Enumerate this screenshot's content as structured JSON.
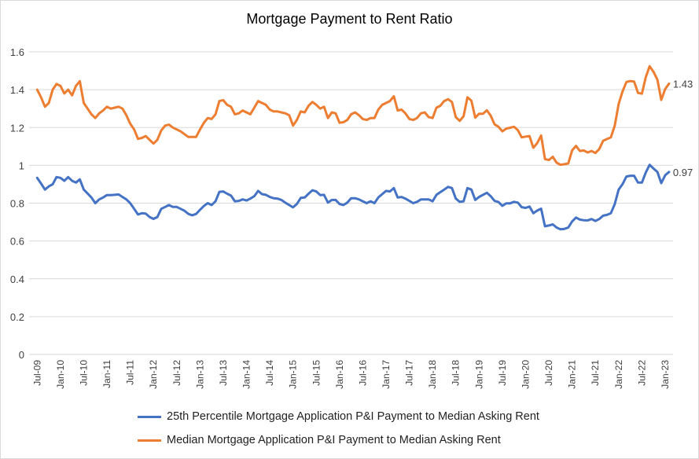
{
  "chart_data": {
    "type": "line",
    "title": "Mortgage Payment to Rent Ratio",
    "xlabel": "",
    "ylabel": "",
    "ylim": [
      0,
      1.6
    ],
    "y_ticks": [
      "0",
      "0.2",
      "0.4",
      "0.6",
      "0.8",
      "1",
      "1.2",
      "1.4",
      "1.6"
    ],
    "x_tick_labels": [
      "Jul-09",
      "Jan-10",
      "Jul-10",
      "Jan-11",
      "Jul-11",
      "Jan-12",
      "Jul-12",
      "Jan-13",
      "Jul-13",
      "Jan-14",
      "Jul-14",
      "Jan-15",
      "Jul-15",
      "Jan-16",
      "Jul-16",
      "Jan-17",
      "Jul-17",
      "Jan-18",
      "Jul-18",
      "Jan-19",
      "Jul-19",
      "Jan-20",
      "Jul-20",
      "Jan-21",
      "Jul-21",
      "Jan-22",
      "Jul-22",
      "Jan-23"
    ],
    "x_frequency": "monthly",
    "grid": "horizontal",
    "legend_position": "bottom",
    "series": [
      {
        "name": "25th Percentile Mortgage Application P&I Payment to Median Asking Rent",
        "color": "#4472C4",
        "end_label": "0.97",
        "values": [
          0.934,
          0.904,
          0.872,
          0.889,
          0.9,
          0.938,
          0.934,
          0.918,
          0.938,
          0.918,
          0.909,
          0.926,
          0.872,
          0.851,
          0.83,
          0.8,
          0.82,
          0.83,
          0.843,
          0.843,
          0.844,
          0.846,
          0.833,
          0.82,
          0.8,
          0.77,
          0.74,
          0.747,
          0.745,
          0.727,
          0.717,
          0.727,
          0.77,
          0.78,
          0.79,
          0.78,
          0.78,
          0.77,
          0.76,
          0.743,
          0.736,
          0.743,
          0.765,
          0.785,
          0.8,
          0.79,
          0.81,
          0.86,
          0.862,
          0.85,
          0.84,
          0.81,
          0.812,
          0.82,
          0.814,
          0.824,
          0.837,
          0.865,
          0.848,
          0.844,
          0.833,
          0.826,
          0.824,
          0.817,
          0.803,
          0.79,
          0.778,
          0.796,
          0.828,
          0.83,
          0.85,
          0.868,
          0.862,
          0.843,
          0.844,
          0.803,
          0.817,
          0.817,
          0.796,
          0.79,
          0.803,
          0.826,
          0.826,
          0.82,
          0.81,
          0.8,
          0.81,
          0.8,
          0.83,
          0.848,
          0.865,
          0.862,
          0.88,
          0.83,
          0.833,
          0.824,
          0.812,
          0.8,
          0.807,
          0.82,
          0.82,
          0.82,
          0.81,
          0.844,
          0.858,
          0.872,
          0.886,
          0.88,
          0.824,
          0.807,
          0.81,
          0.88,
          0.872,
          0.817,
          0.833,
          0.844,
          0.855,
          0.837,
          0.812,
          0.806,
          0.786,
          0.799,
          0.799,
          0.807,
          0.803,
          0.779,
          0.775,
          0.782,
          0.747,
          0.761,
          0.771,
          0.678,
          0.682,
          0.688,
          0.671,
          0.662,
          0.664,
          0.671,
          0.703,
          0.724,
          0.713,
          0.71,
          0.709,
          0.716,
          0.706,
          0.716,
          0.734,
          0.738,
          0.747,
          0.796,
          0.872,
          0.9,
          0.941,
          0.945,
          0.945,
          0.909,
          0.909,
          0.962,
          1.003,
          0.983,
          0.965,
          0.906,
          0.948,
          0.965
        ]
      },
      {
        "name": "Median Mortgage Application P&I Payment to Median Asking Rent",
        "color": "#ED7D31",
        "end_label": "1.43",
        "values": [
          1.4,
          1.36,
          1.31,
          1.33,
          1.4,
          1.43,
          1.42,
          1.38,
          1.4,
          1.37,
          1.42,
          1.445,
          1.33,
          1.3,
          1.27,
          1.25,
          1.275,
          1.29,
          1.31,
          1.3,
          1.305,
          1.31,
          1.3,
          1.265,
          1.22,
          1.19,
          1.14,
          1.145,
          1.155,
          1.135,
          1.115,
          1.135,
          1.185,
          1.21,
          1.215,
          1.2,
          1.19,
          1.18,
          1.165,
          1.15,
          1.15,
          1.15,
          1.19,
          1.225,
          1.25,
          1.245,
          1.27,
          1.34,
          1.345,
          1.32,
          1.31,
          1.27,
          1.275,
          1.29,
          1.28,
          1.27,
          1.305,
          1.34,
          1.33,
          1.32,
          1.295,
          1.285,
          1.285,
          1.28,
          1.275,
          1.265,
          1.21,
          1.24,
          1.285,
          1.28,
          1.315,
          1.335,
          1.32,
          1.3,
          1.31,
          1.25,
          1.28,
          1.275,
          1.225,
          1.228,
          1.24,
          1.27,
          1.28,
          1.265,
          1.245,
          1.24,
          1.25,
          1.25,
          1.295,
          1.32,
          1.33,
          1.34,
          1.365,
          1.29,
          1.295,
          1.275,
          1.245,
          1.24,
          1.25,
          1.275,
          1.28,
          1.255,
          1.25,
          1.305,
          1.315,
          1.34,
          1.35,
          1.335,
          1.255,
          1.235,
          1.26,
          1.36,
          1.342,
          1.252,
          1.273,
          1.273,
          1.291,
          1.263,
          1.217,
          1.204,
          1.18,
          1.194,
          1.199,
          1.204,
          1.186,
          1.148,
          1.152,
          1.155,
          1.093,
          1.118,
          1.158,
          1.033,
          1.028,
          1.045,
          1.014,
          1.003,
          1.006,
          1.01,
          1.079,
          1.103,
          1.076,
          1.079,
          1.068,
          1.076,
          1.065,
          1.086,
          1.13,
          1.139,
          1.148,
          1.211,
          1.324,
          1.39,
          1.441,
          1.446,
          1.443,
          1.383,
          1.379,
          1.466,
          1.524,
          1.494,
          1.453,
          1.346,
          1.404,
          1.432
        ]
      }
    ]
  }
}
